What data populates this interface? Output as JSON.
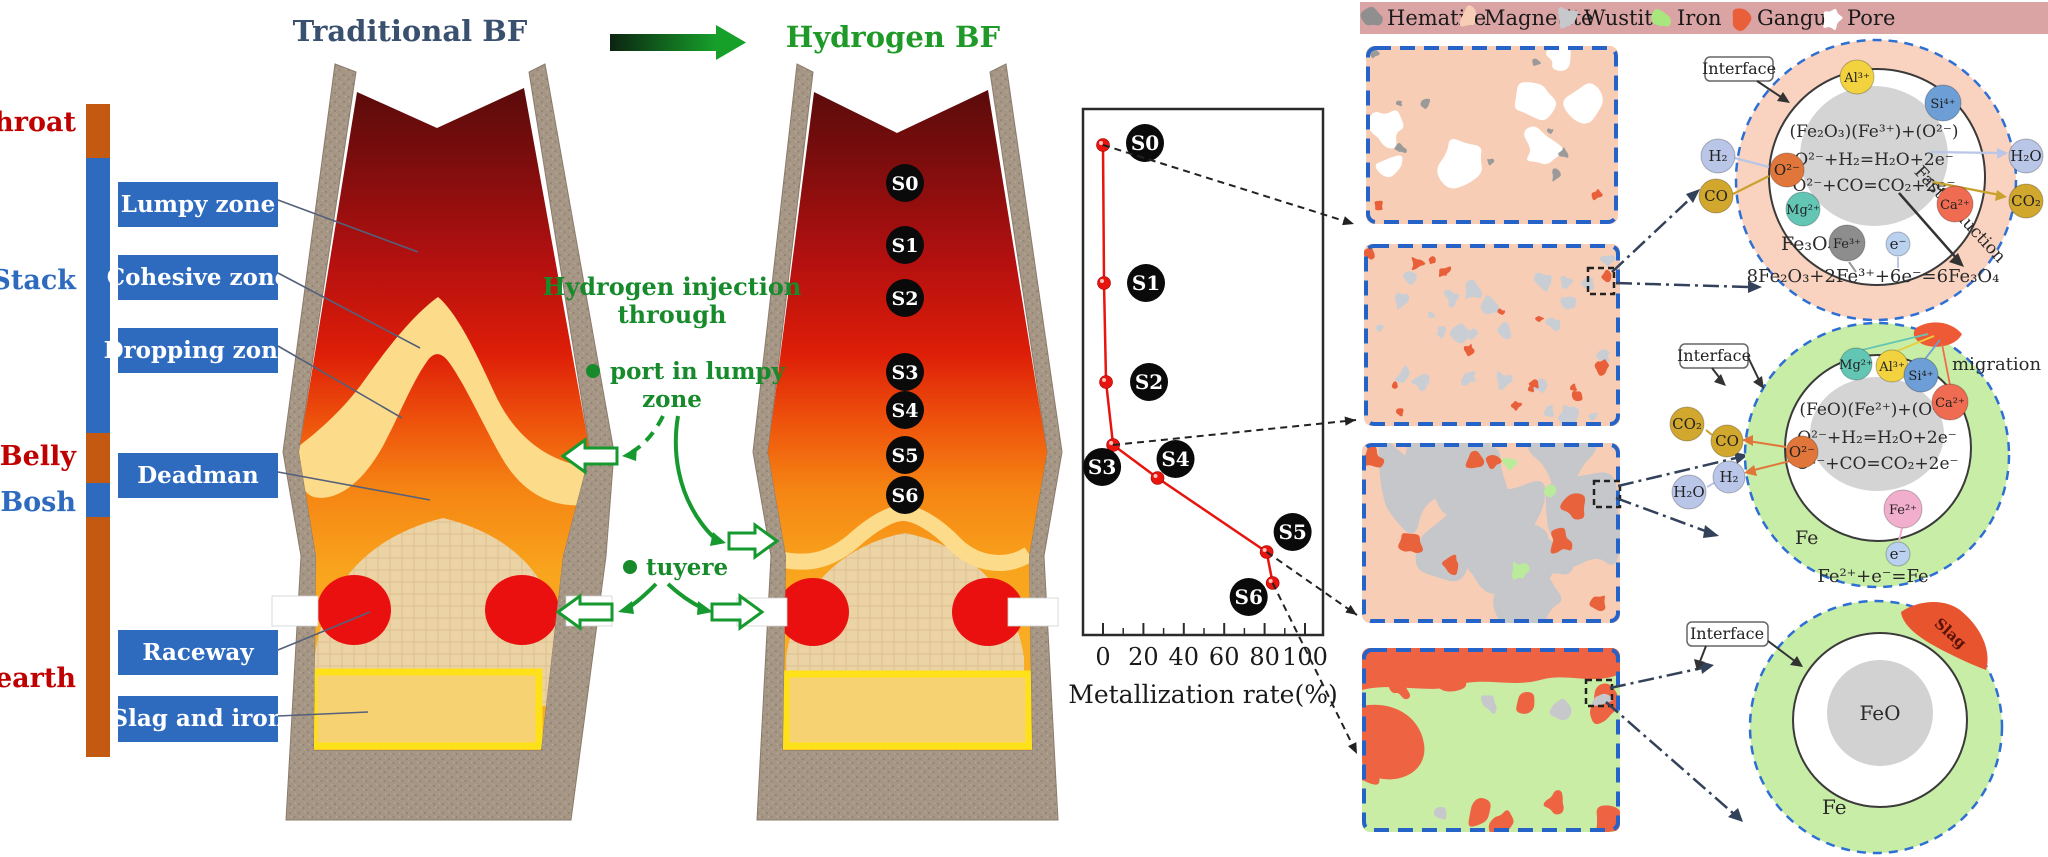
{
  "titles": {
    "traditional": "Traditional BF",
    "hydrogen": "Hydrogen BF"
  },
  "zone_scale": {
    "zones": [
      {
        "label": "Throat",
        "label_color": "#c00000",
        "bar_color": "#c45911"
      },
      {
        "label": "Stack",
        "label_color": "#2e6bbf",
        "bar_color": "#2e6bbf"
      },
      {
        "label": "Belly",
        "label_color": "#c00000",
        "bar_color": "#c45911"
      },
      {
        "label": "Bosh",
        "label_color": "#2e6bbf",
        "bar_color": "#2e6bbf"
      },
      {
        "label": "Hearth",
        "label_color": "#c00000",
        "bar_color": "#c45911"
      }
    ]
  },
  "region_labels": [
    "Lumpy zone",
    "Cohesive zone",
    "Dropping zone",
    "Deadman",
    "Raceway",
    "Slag and iron"
  ],
  "injection": {
    "heading_line1": "Hydrogen injection",
    "heading_line2": "through",
    "port_line1": "port in lumpy",
    "port_line2": "zone",
    "tuyere": "tuyere"
  },
  "samples": [
    "S0",
    "S1",
    "S2",
    "S3",
    "S4",
    "S5",
    "S6"
  ],
  "chart_data": {
    "type": "line",
    "xlabel": "Metallization rate(%)",
    "x_ticks": [
      0,
      20,
      40,
      60,
      80,
      100
    ],
    "x_minor_step": 10,
    "xlim": [
      -8,
      108
    ],
    "categories": [
      "S0",
      "S1",
      "S2",
      "S3",
      "S4",
      "S5",
      "S6"
    ],
    "values": [
      0,
      0.5,
      1.5,
      5,
      27,
      81,
      84
    ],
    "orientation": "samples ordered vertically top(S0) to bottom(S6)",
    "line_color": "#e8150f",
    "grid": false
  },
  "legend": {
    "background": "#dba4a4",
    "items": [
      {
        "label": "Hematite",
        "color": "#8f8f8f"
      },
      {
        "label": "Magnetite",
        "color": "#f8cdb6"
      },
      {
        "label": "Wustite",
        "color": "#c6c8cc"
      },
      {
        "label": "Iron",
        "color": "#a8e77e"
      },
      {
        "label": "Gangue",
        "color": "#e85f3a"
      },
      {
        "label": "Pore",
        "color": "#ffffff"
      }
    ]
  },
  "micrographs": [
    {
      "id": "micrograph-1",
      "background": "#f8cdb6",
      "border": "#2563c9",
      "features": [
        {
          "phase": "pore",
          "color": "#ffffff",
          "count": 8,
          "rmin": 10,
          "rmax": 26
        },
        {
          "phase": "hematite",
          "color": "#9a9a9a",
          "count": 9,
          "rmin": 2.5,
          "rmax": 5.5
        },
        {
          "phase": "gangue",
          "color": "#e85f3a",
          "count": 2,
          "rmin": 3,
          "rmax": 5
        }
      ]
    },
    {
      "id": "micrograph-2",
      "background": "#f8cdb6",
      "border": "#2563c9",
      "features": [
        {
          "phase": "wustite",
          "color": "#c9ced5",
          "count": 26,
          "rmin": 4,
          "rmax": 10
        },
        {
          "phase": "gangue",
          "color": "#e85f3a",
          "count": 16,
          "rmin": 3,
          "rmax": 6.5
        }
      ]
    },
    {
      "id": "micrograph-3",
      "background": "#f8cdb6",
      "border": "#2563c9",
      "features": [
        {
          "phase": "wustite",
          "color": "#c5c7cb",
          "count": 13,
          "rmin": 18,
          "rmax": 40
        },
        {
          "phase": "gangue",
          "color": "#e8623c",
          "count": 8,
          "rmin": 6,
          "rmax": 14
        },
        {
          "phase": "iron",
          "color": "#b9eb9a",
          "count": 3,
          "rmin": 6,
          "rmax": 10
        }
      ]
    },
    {
      "id": "micrograph-4",
      "background": "#c9eda5",
      "border": "#2563c9",
      "band_color": "#ee6342",
      "features": [
        {
          "phase": "gangue",
          "color": "#ee6342",
          "count": 9,
          "rmin": 8,
          "rmax": 17
        },
        {
          "phase": "wustite",
          "color": "#c6c8cc",
          "count": 4,
          "rmin": 6,
          "rmax": 10
        }
      ]
    }
  ],
  "mechanisms": [
    {
      "name": "fast-reduction-to-magnetite",
      "ring_color": "#f9d2c0",
      "ring_label": "Fe₃O₄",
      "interface_label": "Interface",
      "annotation": "Fast reduction",
      "core_lines": [
        "(Fe₂O₃)(Fe³⁺)+(O²⁻)",
        "O²⁻+H₂=H₂O+2e⁻",
        "O²⁻+CO=CO₂+2e⁻"
      ],
      "equation": "8Fe₂O₃+2Fe³⁺+6e⁻=6Fe₃O₄",
      "ions": [
        {
          "formula": "H₂",
          "color": "#b9c6e8"
        },
        {
          "formula": "CO",
          "color": "#d2a72e"
        },
        {
          "formula": "O²⁻",
          "color": "#e0763a"
        },
        {
          "formula": "Mg²⁺",
          "color": "#63c6b4"
        },
        {
          "formula": "Al³⁺",
          "color": "#f2d23e"
        },
        {
          "formula": "Si⁴⁺",
          "color": "#6d9fd6"
        },
        {
          "formula": "Ca²⁺",
          "color": "#ef6b51"
        },
        {
          "formula": "Fe³⁺",
          "color": "#8d8d8d"
        },
        {
          "formula": "e⁻",
          "color": "#bad2f0"
        },
        {
          "formula": "H₂O",
          "color": "#b9c6e8"
        },
        {
          "formula": "CO₂",
          "color": "#d2a72e"
        }
      ]
    },
    {
      "name": "wustite-reduction-to-iron",
      "ring_color": "#c8eda6",
      "ring_label": "Fe",
      "interface_label": "Interface",
      "migration_label": "migration",
      "core_lines": [
        "(FeO)(Fe²⁺)+(O²⁻)",
        "O²⁻+H₂=H₂O+2e⁻",
        "O²⁻+CO=CO₂+2e⁻"
      ],
      "equation": "Fe²⁺+e⁻=Fe",
      "ions": [
        {
          "formula": "CO₂",
          "color": "#d2a72e"
        },
        {
          "formula": "CO",
          "color": "#d2a72e"
        },
        {
          "formula": "H₂",
          "color": "#b9c6e8"
        },
        {
          "formula": "H₂O",
          "color": "#b9c6e8"
        },
        {
          "formula": "O²⁻",
          "color": "#e0763a"
        },
        {
          "formula": "Mg²⁺",
          "color": "#63c6b4"
        },
        {
          "formula": "Al³⁺",
          "color": "#f2d23e"
        },
        {
          "formula": "Si⁴⁺",
          "color": "#6d9fd6"
        },
        {
          "formula": "Ca²⁺",
          "color": "#ef6b51"
        },
        {
          "formula": "Fe²⁺",
          "color": "#f2aecd"
        },
        {
          "formula": "e⁻",
          "color": "#bad2f0"
        }
      ]
    },
    {
      "name": "final-iron-shell",
      "ring_color": "#c8eda6",
      "ring_label": "Fe",
      "core_label": "FeO",
      "slag_label": "Slag",
      "interface_label": "Interface"
    }
  ]
}
